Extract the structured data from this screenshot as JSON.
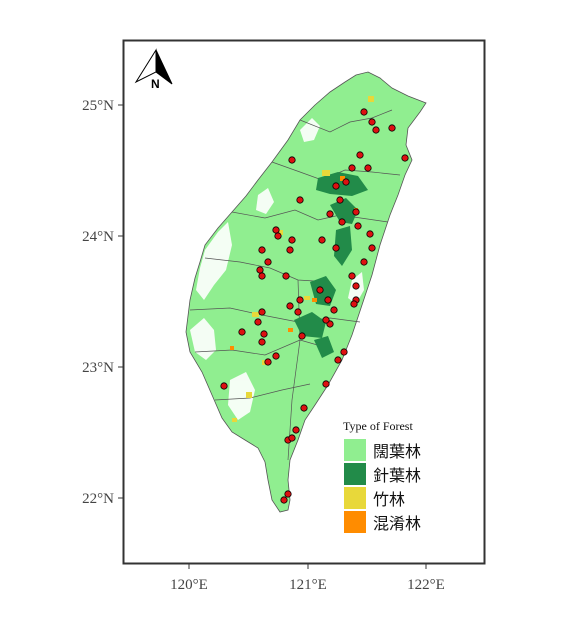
{
  "map": {
    "north_arrow_label": "N",
    "lat_labels": [
      "25°N",
      "24°N",
      "23°N",
      "22°N"
    ],
    "lon_labels": [
      "120°E",
      "121°E",
      "122°E"
    ],
    "icons": {
      "north_arrow": "north-arrow-icon"
    }
  },
  "legend": {
    "title": "Type of Forest",
    "items": [
      {
        "label": "闊葉林",
        "color": "#90EE90"
      },
      {
        "label": "針葉林",
        "color": "#228B49"
      },
      {
        "label": "竹林",
        "color": "#E8D83A"
      },
      {
        "label": "混淆林",
        "color": "#FF8C00"
      }
    ]
  },
  "colors": {
    "land": "#90EE90",
    "conifer": "#228B49",
    "bamboo": "#E8D83A",
    "mixed": "#FF8C00",
    "site_marker": "#DD1111",
    "boundary": "#555555",
    "frame": "#333333"
  }
}
